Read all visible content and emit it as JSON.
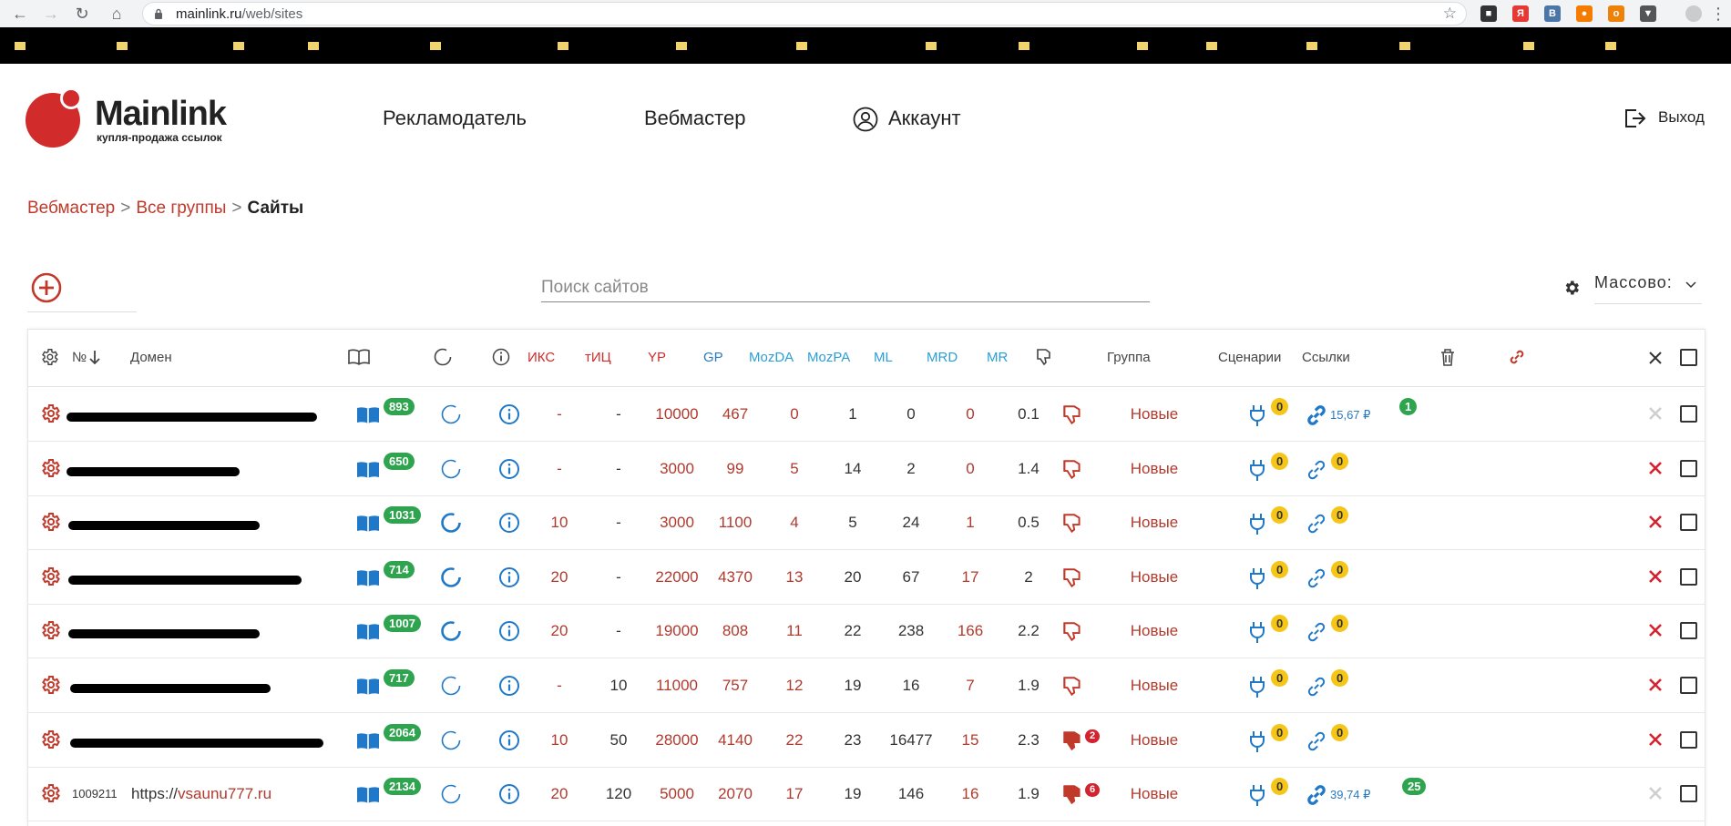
{
  "browser": {
    "url_host": "mainlink.ru",
    "url_path": "/web/sites"
  },
  "header": {
    "logo_name": "Mainlink",
    "logo_tagline": "купля-продажа ссылок",
    "nav_advertiser": "Рекламодатель",
    "nav_webmaster": "Вебмастер",
    "nav_account": "Аккаунт",
    "logout": "Выход"
  },
  "breadcrumb": {
    "item1": "Вебмастер",
    "item2": "Все группы",
    "current": "Сайты",
    "separator": ">"
  },
  "toolbar": {
    "search_placeholder": "Поиск сайтов",
    "mass_label": "Массово:"
  },
  "table": {
    "headers": {
      "num": "№",
      "domain": "Домен",
      "iks": "ИКС",
      "tic": "тИЦ",
      "yp": "YP",
      "gp": "GP",
      "mozda": "MozDA",
      "mozpa": "MozPA",
      "ml": "ML",
      "mrd": "MRD",
      "mr": "MR",
      "group": "Группа",
      "scenarios": "Сценарии",
      "links": "Ссылки"
    },
    "rows": [
      {
        "id": "",
        "domain_prefix": "",
        "domain": "",
        "pages": "893",
        "iks": "-",
        "tic": "-",
        "yp": "10000",
        "gp": "467",
        "mozda": "0",
        "mozpa": "1",
        "ml": "0",
        "mrd": "0",
        "mr": "0.1",
        "dislikes": "",
        "group": "Новые",
        "scenarios": "0",
        "price": "15,67 ₽",
        "links": "1"
      },
      {
        "id": "",
        "domain_prefix": "",
        "domain": "",
        "pages": "650",
        "iks": "-",
        "tic": "-",
        "yp": "3000",
        "gp": "99",
        "mozda": "5",
        "mozpa": "14",
        "ml": "2",
        "mrd": "0",
        "mr": "1.4",
        "dislikes": "",
        "group": "Новые",
        "scenarios": "0",
        "price": "",
        "links": "0"
      },
      {
        "id": "",
        "domain_prefix": "",
        "domain": "",
        "pages": "1031",
        "iks": "10",
        "tic": "-",
        "yp": "3000",
        "gp": "1100",
        "mozda": "4",
        "mozpa": "5",
        "ml": "24",
        "mrd": "1",
        "mr": "0.5",
        "dislikes": "",
        "group": "Новые",
        "scenarios": "0",
        "price": "",
        "links": "0"
      },
      {
        "id": "",
        "domain_prefix": "",
        "domain": "",
        "pages": "714",
        "iks": "20",
        "tic": "-",
        "yp": "22000",
        "gp": "4370",
        "mozda": "13",
        "mozpa": "20",
        "ml": "67",
        "mrd": "17",
        "mr": "2",
        "dislikes": "",
        "group": "Новые",
        "scenarios": "0",
        "price": "",
        "links": "0"
      },
      {
        "id": "",
        "domain_prefix": "",
        "domain": "",
        "pages": "1007",
        "iks": "20",
        "tic": "-",
        "yp": "19000",
        "gp": "808",
        "mozda": "11",
        "mozpa": "22",
        "ml": "238",
        "mrd": "166",
        "mr": "2.2",
        "dislikes": "",
        "group": "Новые",
        "scenarios": "0",
        "price": "",
        "links": "0"
      },
      {
        "id": "",
        "domain_prefix": "",
        "domain": "",
        "pages": "717",
        "iks": "-",
        "tic": "10",
        "yp": "11000",
        "gp": "757",
        "mozda": "12",
        "mozpa": "19",
        "ml": "16",
        "mrd": "7",
        "mr": "1.9",
        "dislikes": "",
        "group": "Новые",
        "scenarios": "0",
        "price": "",
        "links": "0"
      },
      {
        "id": "",
        "domain_prefix": "",
        "domain": "",
        "pages": "2064",
        "iks": "10",
        "tic": "50",
        "yp": "28000",
        "gp": "4140",
        "mozda": "22",
        "mozpa": "23",
        "ml": "16477",
        "mrd": "15",
        "mr": "2.3",
        "dislikes": "2",
        "group": "Новые",
        "scenarios": "0",
        "price": "",
        "links": "0"
      },
      {
        "id": "1009211",
        "domain_prefix": "https://",
        "domain": "vsaunu777.ru",
        "pages": "2134",
        "iks": "20",
        "tic": "120",
        "yp": "5000",
        "gp": "2070",
        "mozda": "17",
        "mozpa": "19",
        "ml": "146",
        "mrd": "16",
        "mr": "1.9",
        "dislikes": "6",
        "group": "Новые",
        "scenarios": "0",
        "price": "39,74 ₽",
        "links": "25"
      }
    ]
  },
  "colors": {
    "accent_red": "#d22b2b",
    "value_red": "#b03a2e",
    "link_blue": "#1f78c8",
    "badge_green": "#2ea44f",
    "badge_yellow": "#f5c518"
  }
}
